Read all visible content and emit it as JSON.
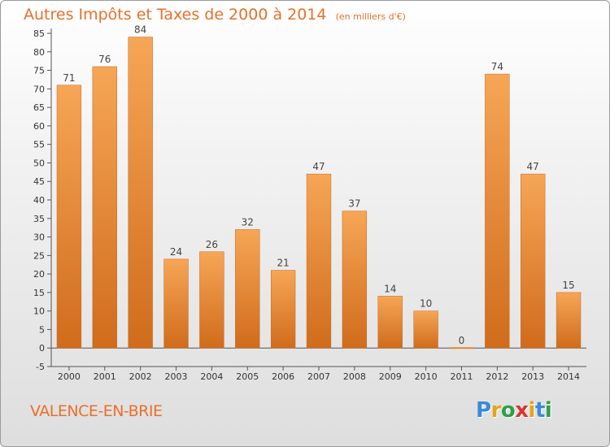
{
  "title": "Autres Impôts et Taxes de 2000 à 2014",
  "unit_note": "(en milliers d'€)",
  "city": "VALENCE-EN-BRIE",
  "logo": {
    "letters": [
      "P",
      "r",
      "o",
      "x",
      "i",
      "t",
      "i"
    ],
    "colors": [
      "#3a8ad6",
      "#e8a21a",
      "#2f9e4a",
      "#d8352f",
      "#e8a21a",
      "#3a8ad6",
      "#2f9e4a"
    ]
  },
  "chart_data": {
    "type": "bar",
    "categories": [
      "2000",
      "2001",
      "2002",
      "2003",
      "2004",
      "2005",
      "2006",
      "2007",
      "2008",
      "2009",
      "2010",
      "2011",
      "2012",
      "2013",
      "2014"
    ],
    "values": [
      71,
      76,
      84,
      24,
      26,
      32,
      21,
      47,
      37,
      14,
      10,
      0,
      74,
      47,
      15
    ],
    "yticks": [
      -5,
      0,
      5,
      10,
      15,
      20,
      25,
      30,
      35,
      40,
      45,
      50,
      55,
      60,
      65,
      70,
      75,
      80,
      85
    ],
    "ylim": [
      -5,
      85
    ],
    "grid": false,
    "bar_color": "#f0943a"
  }
}
